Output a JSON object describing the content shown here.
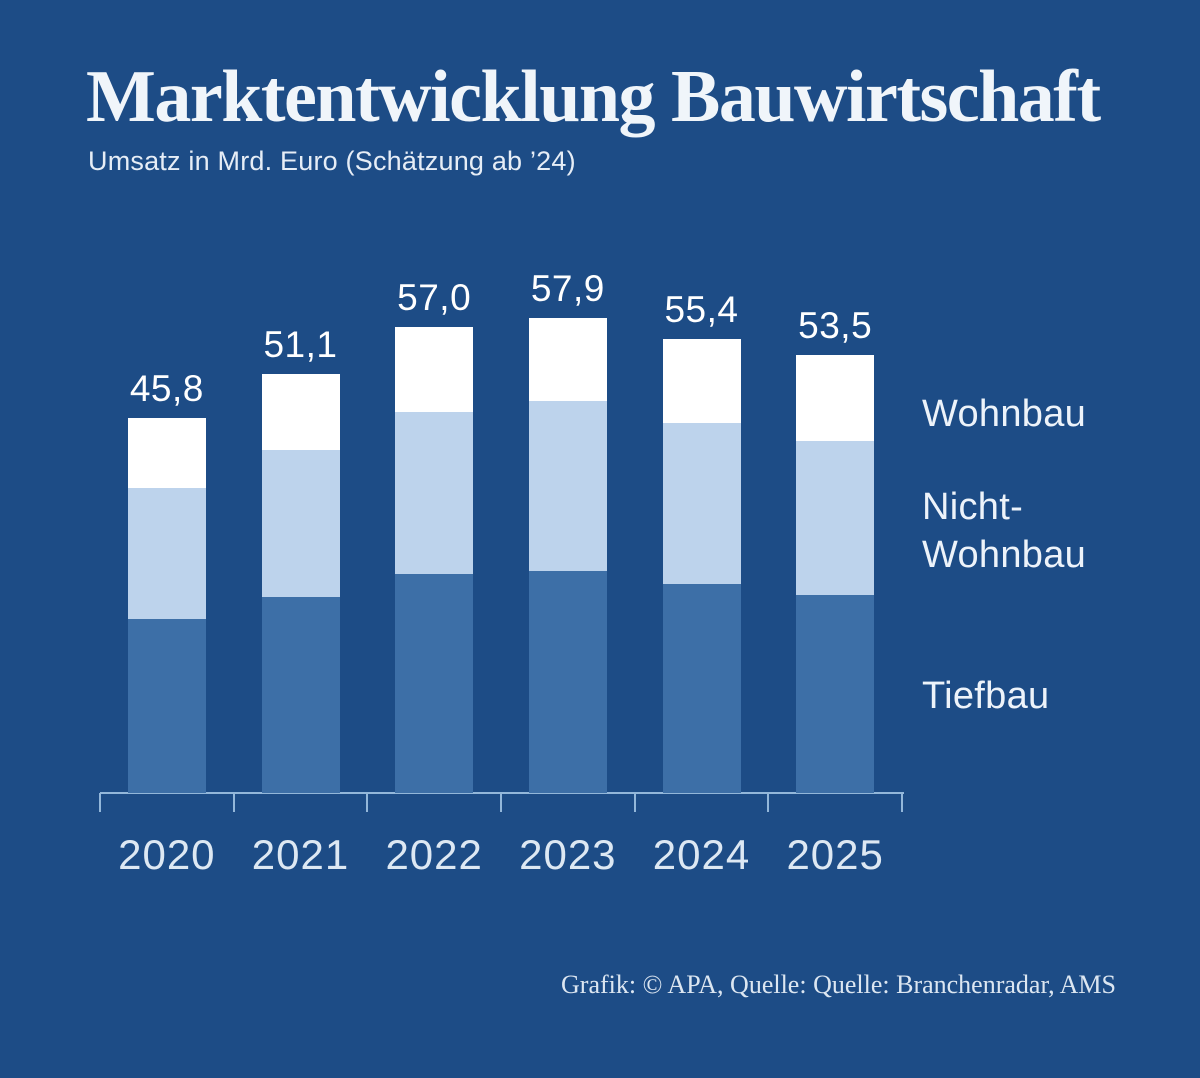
{
  "header": {
    "title": "Marktentwicklung Bauwirtschaft",
    "subtitle": "Umsatz in Mrd. Euro (Schätzung ab ’24)"
  },
  "legend": {
    "position": "right",
    "items": [
      {
        "label": "Wohnbau",
        "color": "#ffffff"
      },
      {
        "label": "Nicht-\nWohnbau",
        "color": "#bdd3ec"
      },
      {
        "label": "Tiefbau",
        "color": "#3d6fa7"
      }
    ]
  },
  "chart_data": {
    "type": "bar",
    "stacked": true,
    "title": "Marktentwicklung Bauwirtschaft",
    "subtitle": "Umsatz in Mrd. Euro (Schätzung ab ’24)",
    "unit": "Mrd. Euro",
    "xlabel": "",
    "ylabel": "Umsatz in Mrd. Euro",
    "grid": false,
    "legend_position": "right",
    "categories": [
      "2020",
      "2021",
      "2022",
      "2023",
      "2024",
      "2025"
    ],
    "series": [
      {
        "name": "Tiefbau",
        "color": "#3d6fa7",
        "values": [
          21.3,
          23.9,
          26.8,
          27.1,
          25.5,
          24.2
        ]
      },
      {
        "name": "Nicht-Wohnbau",
        "color": "#bdd3ec",
        "values": [
          16.0,
          17.9,
          19.8,
          20.7,
          19.6,
          18.8
        ]
      },
      {
        "name": "Wohnbau",
        "color": "#ffffff",
        "values": [
          8.5,
          9.3,
          10.4,
          10.1,
          10.3,
          10.5
        ]
      }
    ],
    "segments_estimated_from_pixels": true,
    "totals": [
      45.8,
      51.1,
      57.0,
      57.9,
      55.4,
      53.5
    ],
    "totals_display": [
      "45,8",
      "51,1",
      "57,0",
      "57,9",
      "55,4",
      "53,5"
    ]
  },
  "colors": {
    "background": "#1d4c86",
    "axis": "#93b7da",
    "text": "#edf3fa"
  },
  "footer": {
    "credit": "Grafik: © APA, Quelle: Quelle: Branchenradar, AMS"
  }
}
